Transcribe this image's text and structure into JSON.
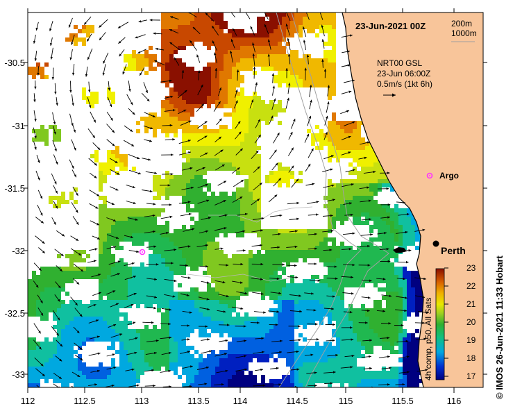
{
  "map": {
    "timestamp": "23-Jun-2021 00Z",
    "depth_contours": [
      "200m",
      "1000m"
    ],
    "current_product": "NRT00 GSL",
    "current_time": "23-Jun 06:00Z",
    "vector_scale": "0.5m/s (1kt 6h)",
    "argo_label": "Argo",
    "city_label": "Perth",
    "lon_ticks": [
      "112",
      "112.5",
      "113",
      "113.5",
      "114",
      "114.5",
      "115",
      "115.5",
      "116"
    ],
    "lat_ticks": [
      "-30.5",
      "-31",
      "-31.5",
      "-32",
      "-32.5",
      "-33"
    ],
    "colors": {
      "land": "#f8c59a",
      "water": "#ffffff",
      "argo": "#ff33ff"
    }
  },
  "colorbar": {
    "ticks": [
      "23",
      "22",
      "21",
      "20",
      "19",
      "18",
      "17"
    ],
    "caption": "4h comp, p50, All Sats"
  },
  "credit": "IMOS 26-Jun-2021 11:33 Hobart",
  "copyright_symbol": "©"
}
